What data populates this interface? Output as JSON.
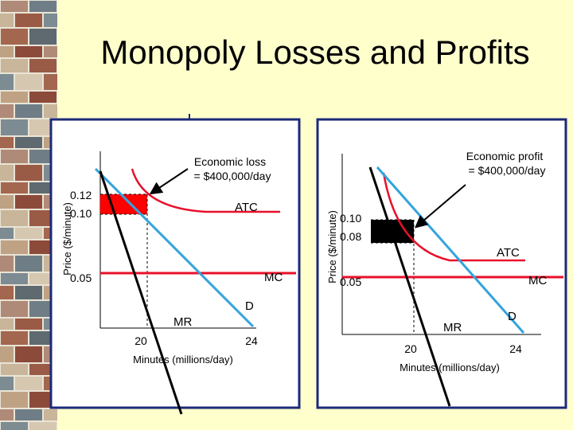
{
  "slide": {
    "title": "Monopoly Losses and Profits"
  },
  "chart_data": [
    {
      "type": "line",
      "title": "",
      "xlabel": "Minutes (millions/day)",
      "ylabel": "Price ($/minute)",
      "x_ticks": [
        "20",
        "24"
      ],
      "y_ticks": [
        "0.12",
        "0.10",
        "0.05"
      ],
      "annotation": [
        "Economic loss",
        "= $400,000/day"
      ],
      "shaded_region": {
        "label": "Economic loss",
        "quantity": 20,
        "price_low": 0.1,
        "price_high": 0.12,
        "color": "#ff0000"
      },
      "curves": [
        {
          "name": "D",
          "color": "#33a4dc"
        },
        {
          "name": "MR",
          "color": "#000000"
        },
        {
          "name": "ATC",
          "color": "#e8102a"
        },
        {
          "name": "MC",
          "color": "#e8102a",
          "value": 0.05
        }
      ]
    },
    {
      "type": "line",
      "title": "",
      "xlabel": "Minutes (millions/day)",
      "ylabel": "Price ($/minute)",
      "x_ticks": [
        "20",
        "24"
      ],
      "y_ticks": [
        "0.10",
        "0.08",
        "0.05"
      ],
      "annotation": [
        "Economic profit",
        "= $400,000/day"
      ],
      "shaded_region": {
        "label": "Economic profit",
        "quantity": 20,
        "price_low": 0.08,
        "price_high": 0.1,
        "color": "#000000"
      },
      "curves": [
        {
          "name": "D",
          "color": "#33a4dc"
        },
        {
          "name": "MR",
          "color": "#000000"
        },
        {
          "name": "ATC",
          "color": "#e8102a"
        },
        {
          "name": "MC",
          "color": "#e8102a",
          "value": 0.05
        }
      ]
    }
  ]
}
